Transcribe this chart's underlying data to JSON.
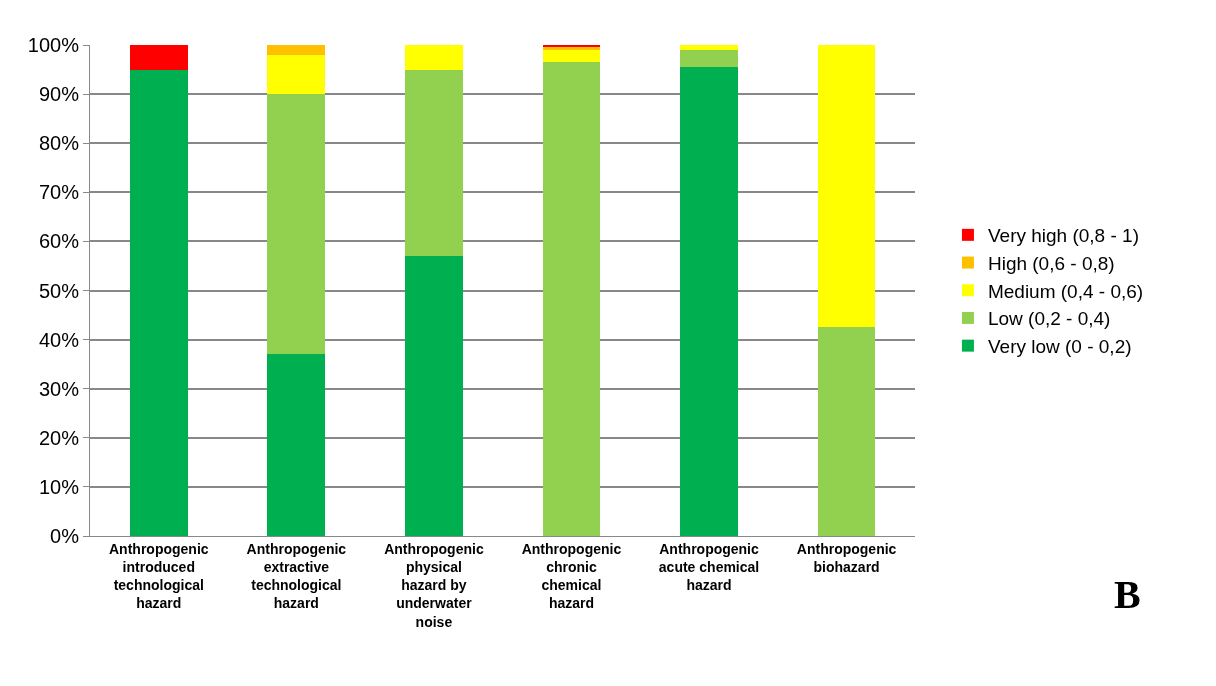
{
  "chart_data": {
    "type": "bar",
    "stacked": true,
    "categories": [
      "Anthropogenic introduced technological hazard",
      "Anthropogenic extractive technological hazard",
      "Anthropogenic physical hazard by underwater noise",
      "Anthropogenic chronic chemical hazard",
      "Anthropogenic acute chemical hazard",
      "Anthropogenic biohazard"
    ],
    "series": [
      {
        "name": "Very low (0 - 0,2)",
        "color": "#00b050",
        "values": [
          95,
          37,
          57,
          0,
          95.5,
          0
        ]
      },
      {
        "name": "Low (0,2 - 0,4)",
        "color": "#92d050",
        "values": [
          0,
          53,
          38,
          96.5,
          3.5,
          42.5
        ]
      },
      {
        "name": "Medium (0,4 - 0,6)",
        "color": "#ffff00",
        "values": [
          0,
          8,
          5,
          2.5,
          1,
          57.5
        ]
      },
      {
        "name": "High (0,6 - 0,8)",
        "color": "#ffc000",
        "values": [
          0,
          2,
          0,
          0.5,
          0,
          0
        ]
      },
      {
        "name": "Very high (0,8 - 1)",
        "color": "#ff0000",
        "values": [
          5,
          0,
          0,
          0.5,
          0,
          0
        ]
      }
    ],
    "ylim": [
      0,
      100
    ],
    "yticks": [
      {
        "value": 0,
        "label": "0%"
      },
      {
        "value": 10,
        "label": "10%"
      },
      {
        "value": 20,
        "label": "20%"
      },
      {
        "value": 30,
        "label": "30%"
      },
      {
        "value": 40,
        "label": "40%"
      },
      {
        "value": 50,
        "label": "50%"
      },
      {
        "value": 60,
        "label": "60%"
      },
      {
        "value": 70,
        "label": "70%"
      },
      {
        "value": 80,
        "label": "80%"
      },
      {
        "value": 90,
        "label": "90%"
      },
      {
        "value": 100,
        "label": "100%"
      }
    ],
    "grid": "y",
    "legend": "right",
    "annotations": [
      "B"
    ]
  }
}
